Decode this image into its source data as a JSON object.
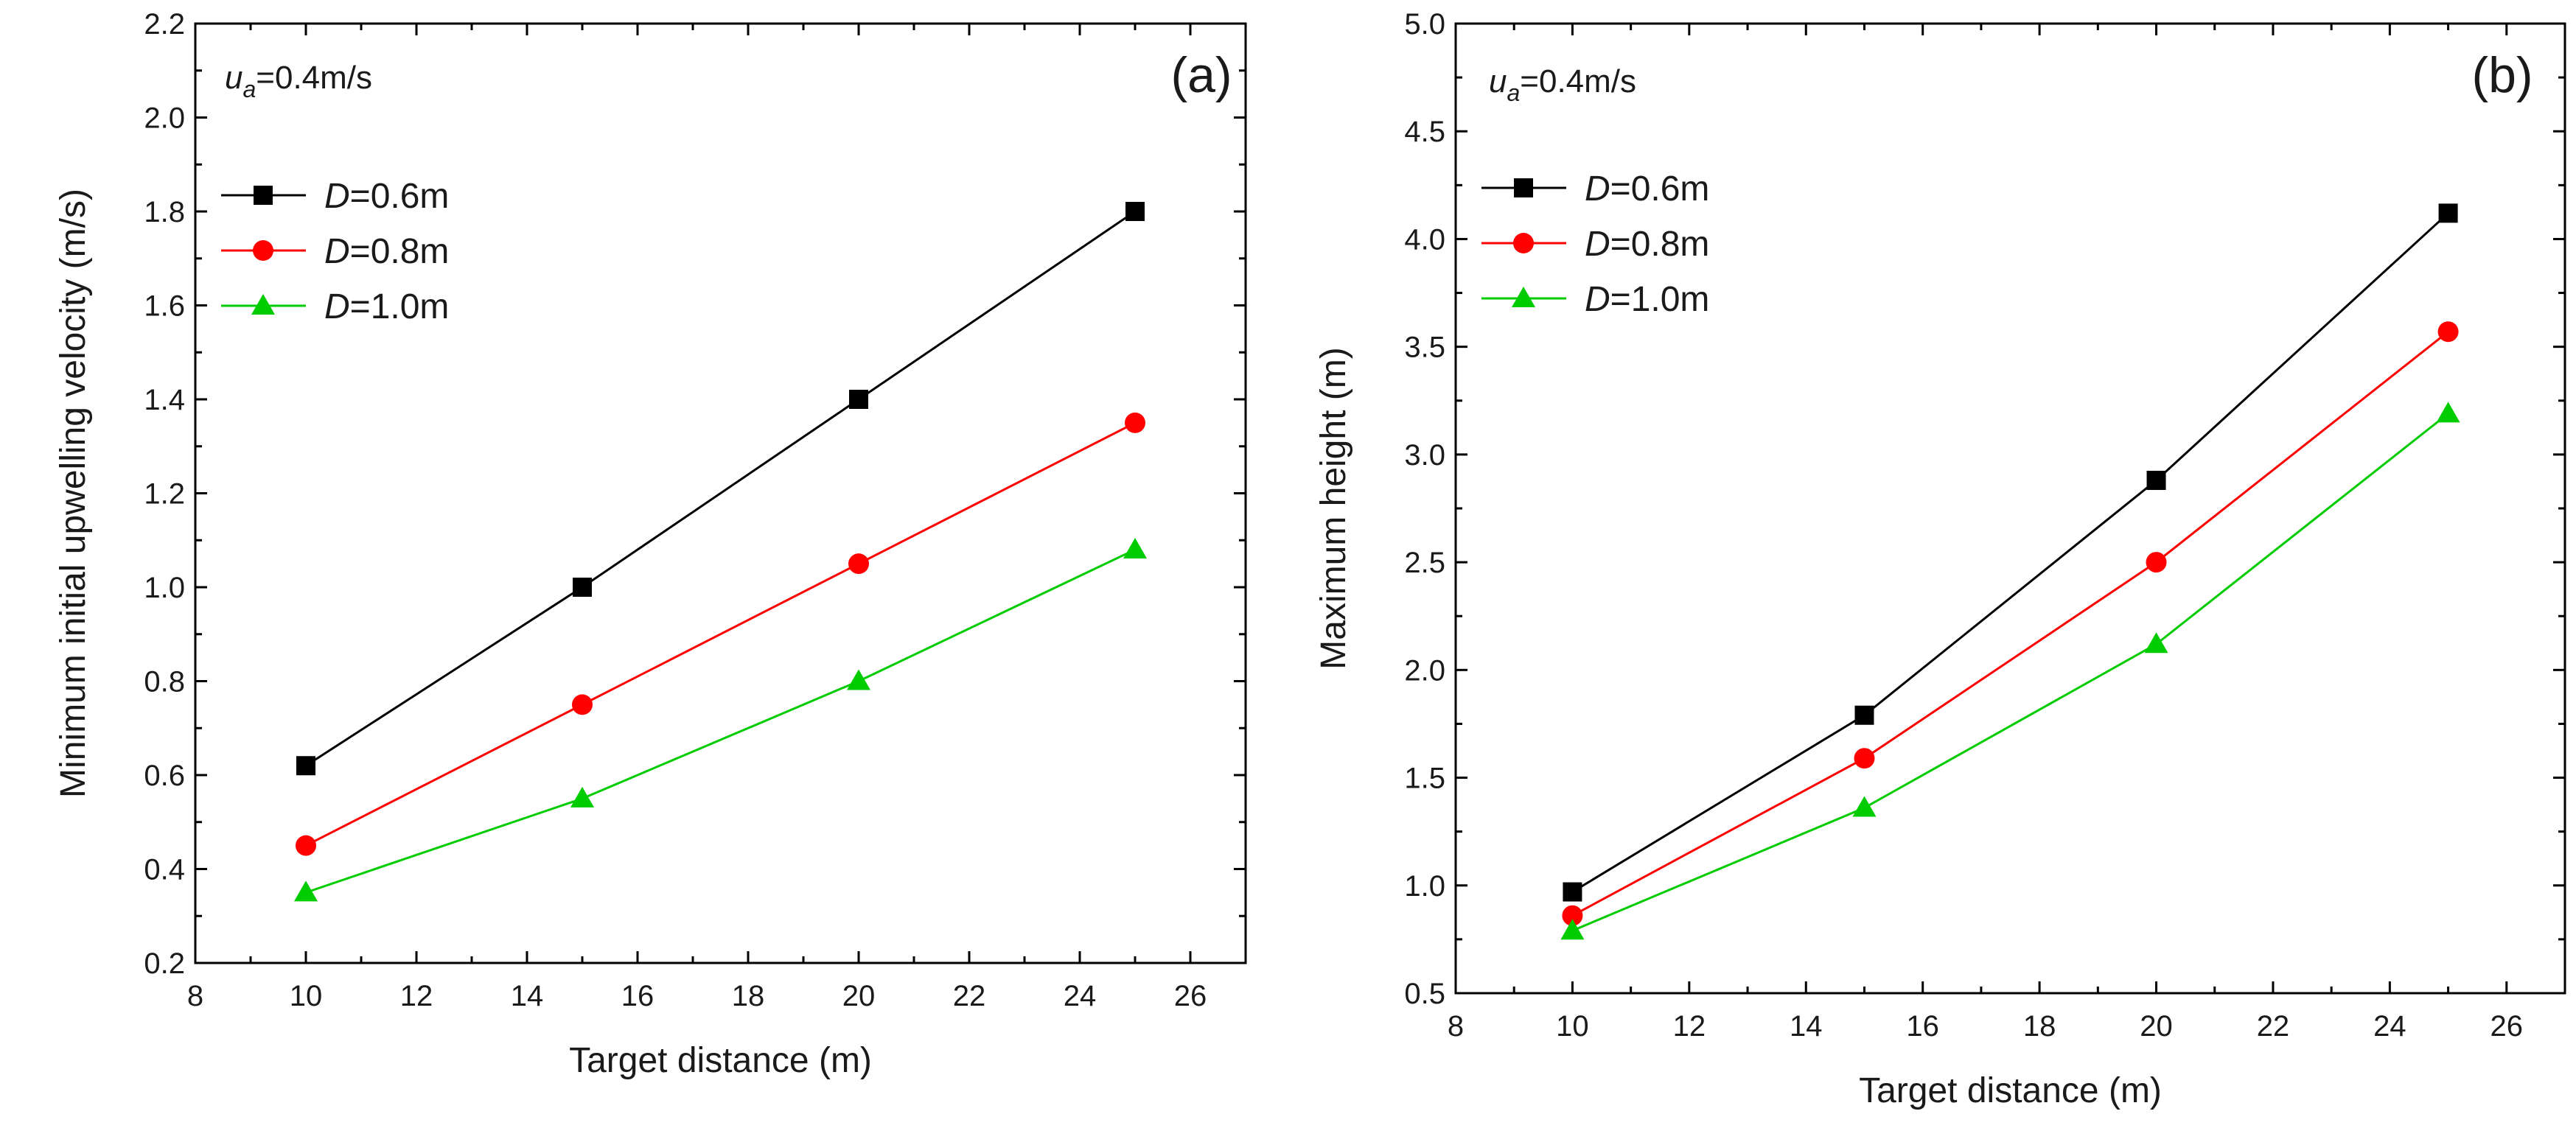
{
  "chart_data": [
    {
      "type": "line",
      "panel_label": "(a)",
      "annotation": {
        "symbol": "u",
        "subscript": "a",
        "rest": "=0.4m/s"
      },
      "xlabel": "Target distance (m)",
      "ylabel": "Minimum initial upwelling velocity (m/s)",
      "xlim": [
        8,
        27
      ],
      "ylim": [
        0.2,
        2.2
      ],
      "xticks": [
        8,
        10,
        12,
        14,
        16,
        18,
        20,
        22,
        24,
        26
      ],
      "yticks": [
        0.2,
        0.4,
        0.6,
        0.8,
        1.0,
        1.2,
        1.4,
        1.6,
        1.8,
        2.0,
        2.2
      ],
      "ytick_labels": [
        "0.2",
        "0.4",
        "0.6",
        "0.8",
        "1.0",
        "1.2",
        "1.4",
        "1.6",
        "1.8",
        "2.0",
        "2.2"
      ],
      "x": [
        10,
        15,
        20,
        25
      ],
      "legend_position": "top-left",
      "series": [
        {
          "name_italic": "D",
          "name_rest": "=0.6m",
          "color": "#000000",
          "marker": "square",
          "values": [
            0.62,
            1.0,
            1.4,
            1.8
          ]
        },
        {
          "name_italic": "D",
          "name_rest": "=0.8m",
          "color": "#ff0000",
          "marker": "circle",
          "values": [
            0.45,
            0.75,
            1.05,
            1.35
          ]
        },
        {
          "name_italic": "D",
          "name_rest": "=1.0m",
          "color": "#00cc00",
          "marker": "triangle",
          "values": [
            0.35,
            0.55,
            0.8,
            1.08
          ]
        }
      ]
    },
    {
      "type": "line",
      "panel_label": "(b)",
      "annotation": {
        "symbol": "u",
        "subscript": "a",
        "rest": "=0.4m/s"
      },
      "xlabel": "Target distance (m)",
      "ylabel": "Maximum height (m)",
      "xlim": [
        8,
        27
      ],
      "ylim": [
        0.5,
        5.0
      ],
      "xticks": [
        8,
        10,
        12,
        14,
        16,
        18,
        20,
        22,
        24,
        26
      ],
      "yticks": [
        0.5,
        1.0,
        1.5,
        2.0,
        2.5,
        3.0,
        3.5,
        4.0,
        4.5,
        5.0
      ],
      "ytick_labels": [
        "0.5",
        "1.0",
        "1.5",
        "2.0",
        "2.5",
        "3.0",
        "3.5",
        "4.0",
        "4.5",
        "5.0"
      ],
      "x": [
        10,
        15,
        20,
        25
      ],
      "legend_position": "top-left",
      "series": [
        {
          "name_italic": "D",
          "name_rest": "=0.6m",
          "color": "#000000",
          "marker": "square",
          "values": [
            0.97,
            1.79,
            2.88,
            4.12
          ]
        },
        {
          "name_italic": "D",
          "name_rest": "=0.8m",
          "color": "#ff0000",
          "marker": "circle",
          "values": [
            0.86,
            1.59,
            2.5,
            3.57
          ]
        },
        {
          "name_italic": "D",
          "name_rest": "=1.0m",
          "color": "#00cc00",
          "marker": "triangle",
          "values": [
            0.79,
            1.36,
            2.12,
            3.19
          ]
        }
      ]
    }
  ]
}
